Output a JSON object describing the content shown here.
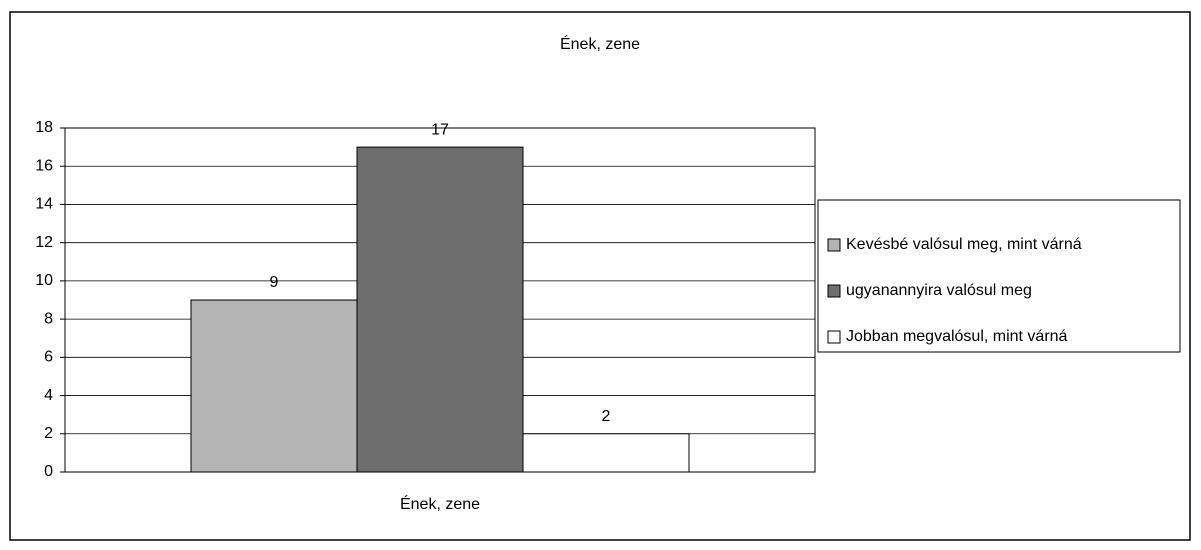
{
  "chart_data": {
    "type": "bar",
    "title": "Ének, zene",
    "categories": [
      "Ének, zene"
    ],
    "series": [
      {
        "name": "Kevésbé valósul meg, mint várná",
        "color": "#b4b4b4",
        "values": [
          9
        ]
      },
      {
        "name": "ugyanannyira valósul meg",
        "color": "#6e6e6e",
        "values": [
          17
        ]
      },
      {
        "name": "Jobban megvalósul, mint várná",
        "color": "#ffffff",
        "values": [
          2
        ]
      }
    ],
    "ylim": [
      0,
      18
    ],
    "yticks": [
      0,
      2,
      4,
      6,
      8,
      10,
      12,
      14,
      16,
      18
    ],
    "grid": true,
    "legend": "right"
  }
}
